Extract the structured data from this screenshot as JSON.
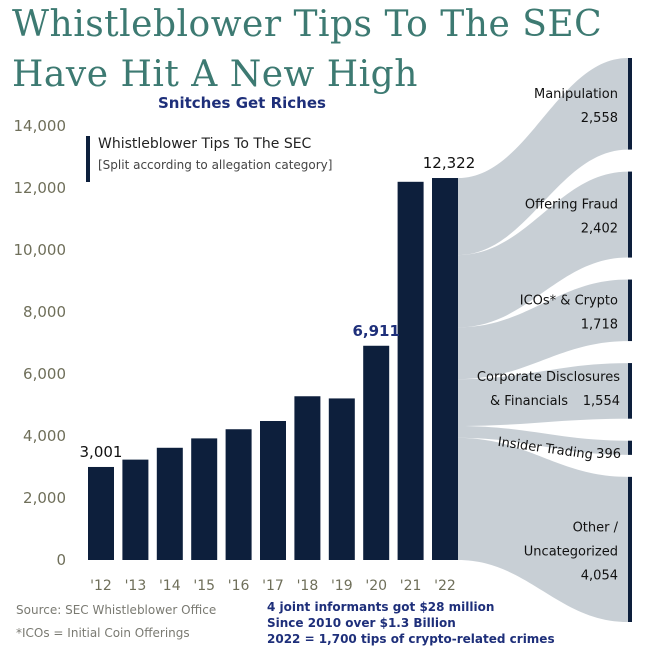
{
  "title_line1": "Whistleblower Tips To The SEC",
  "title_line2": "Have Hit A New High",
  "subtitle": "Snitches Get Riches",
  "source": "Source: SEC Whistleblower Office",
  "footnote": "*ICOs = Initial Coin Offerings",
  "facts": [
    "4 joint informants got $28 million",
    "Since 2010 over $1.3 Billion",
    "2022 = 1,700 tips of crypto-related crimes"
  ],
  "colors": {
    "bar": "#0d1f3c",
    "flow": "#c5ccd3",
    "title": "#3d7a72",
    "axis_text": "#6f6f5a"
  },
  "chart_data": {
    "type": "bar",
    "legend_title": "Whistleblower Tips To The SEC",
    "legend_subtitle": "[Split according to allegation category]",
    "categories": [
      "'12",
      "'13",
      "'14",
      "'15",
      "'16",
      "'17",
      "'18",
      "'19",
      "'20",
      "'21",
      "'22"
    ],
    "values": [
      3001,
      3238,
      3620,
      3923,
      4218,
      4484,
      5282,
      5212,
      6911,
      12200,
      12322
    ],
    "data_labels": [
      {
        "index": 0,
        "text": "3,001"
      },
      {
        "index": 8,
        "text": "6,911"
      },
      {
        "index": 10,
        "text": "12,322"
      }
    ],
    "ylim": [
      0,
      14000
    ],
    "yticks": [
      0,
      2000,
      4000,
      6000,
      8000,
      10000,
      12000,
      14000
    ],
    "ytick_labels": [
      "0",
      "2,000",
      "4,000",
      "6,000",
      "8,000",
      "10,000",
      "12,000",
      "14,000"
    ],
    "breakdown_2022": [
      {
        "label_lines": [
          "Manipulation"
        ],
        "value_text": "2,558",
        "value": 2558
      },
      {
        "label_lines": [
          "Offering Fraud"
        ],
        "value_text": "2,402",
        "value": 2402
      },
      {
        "label_lines": [
          "ICOs* & Crypto"
        ],
        "value_text": "1,718",
        "value": 1718
      },
      {
        "label_lines": [
          "Corporate Disclosures",
          "& Financials"
        ],
        "value_text": "1,554",
        "value": 1554
      },
      {
        "label_lines": [
          "Insider Trading"
        ],
        "value_text": "396",
        "value": 396
      },
      {
        "label_lines": [
          "Other /",
          "Uncategorized"
        ],
        "value_text": "4,054",
        "value": 4054
      }
    ]
  }
}
